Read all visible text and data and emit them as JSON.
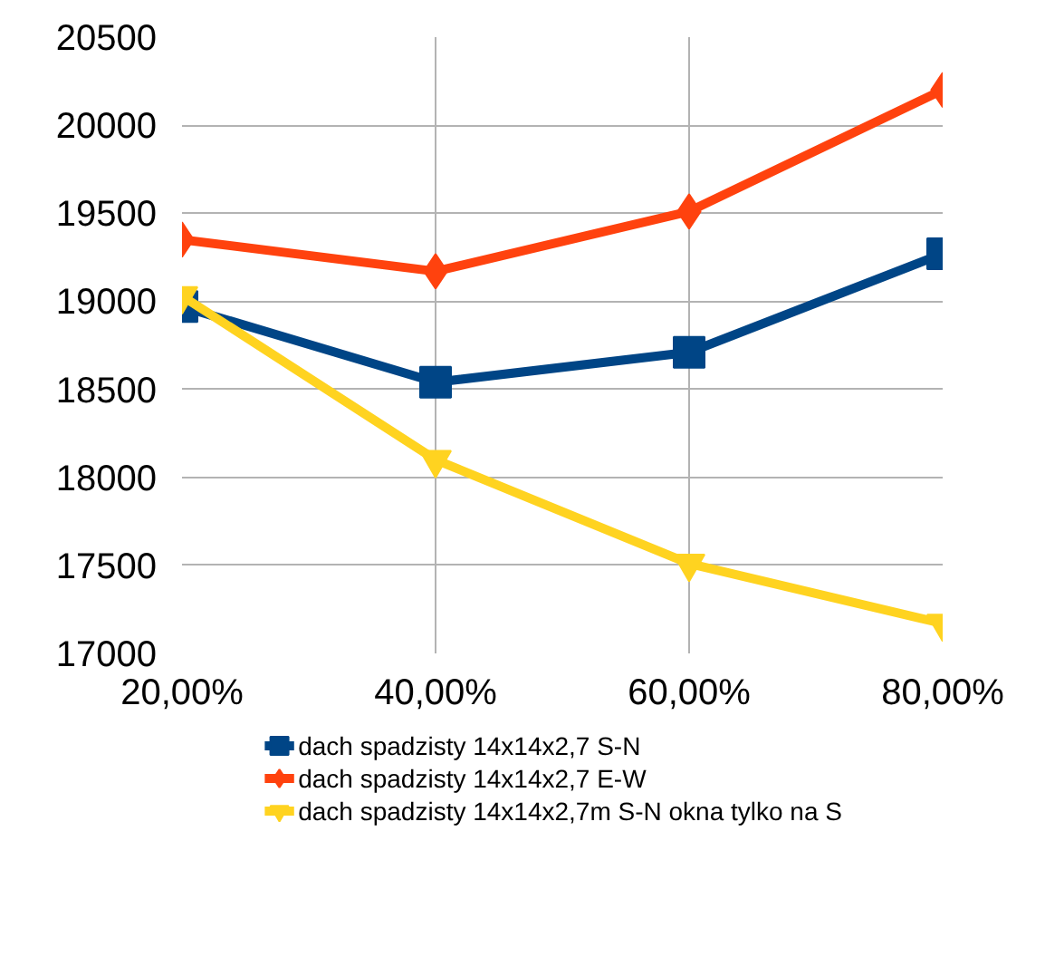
{
  "chart_data": {
    "type": "line",
    "categories": [
      "20,00%",
      "40,00%",
      "60,00%",
      "80,00%"
    ],
    "ylim": [
      17000,
      20500
    ],
    "yticks": [
      17000,
      17500,
      18000,
      18500,
      19000,
      19500,
      20000,
      20500
    ],
    "grid": true,
    "legend": "bottom",
    "line_style": "solid",
    "series": [
      {
        "name": "dach spadzisty 14x14x2,7 S-N",
        "color": "#004586",
        "marker": "square",
        "values": [
          18970,
          18540,
          18710,
          19270
        ]
      },
      {
        "name": "dach spadzisty 14x14x2,7 E-W",
        "color": "#ff420e",
        "marker": "diamond",
        "values": [
          19350,
          19170,
          19510,
          20200
        ]
      },
      {
        "name": "dach spadzisty 14x14x2,7m  S-N okna tylko na S",
        "color": "#ffd320",
        "marker": "triangle",
        "values": [
          19030,
          18100,
          17510,
          17170
        ]
      }
    ]
  }
}
